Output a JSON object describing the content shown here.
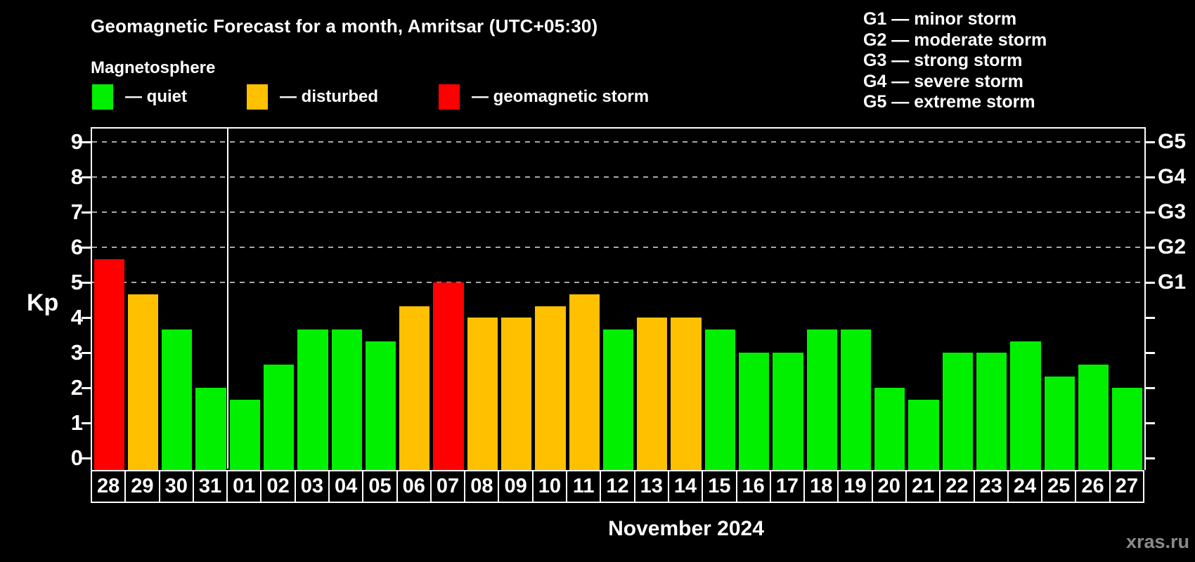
{
  "header": {
    "title": "Geomagnetic Forecast for a month, Amritsar (UTC+05:30)",
    "subtitle": "Magnetosphere"
  },
  "legend": {
    "items": [
      {
        "status": "quiet",
        "label": "— quiet"
      },
      {
        "status": "disturbed",
        "label": "— disturbed"
      },
      {
        "status": "storm",
        "label": "— geomagnetic storm"
      }
    ]
  },
  "storm_scale": [
    "G1 — minor storm",
    "G2 — moderate storm",
    "G3 — strong storm",
    "G4 — severe storm",
    "G5 — extreme storm"
  ],
  "colors": {
    "quiet": "#00f000",
    "disturbed": "#ffc000",
    "storm": "#ff0000",
    "grid": "#a8a8a8",
    "axis": "#ffffff",
    "watermark": "#8a8a8a"
  },
  "watermark": "xras.ru",
  "chart_data": {
    "type": "bar",
    "title": "Geomagnetic Forecast for a month, Amritsar (UTC+05:30)",
    "ylabel": "Kp",
    "xlabel": "November 2024",
    "ylim": [
      0,
      9
    ],
    "y_ticks": [
      0,
      1,
      2,
      3,
      4,
      5,
      6,
      7,
      8,
      9
    ],
    "gridline_values": [
      5,
      6,
      7,
      8,
      9
    ],
    "grid": "dashed, only at storm levels 5-9",
    "legend_position": "top-left and top-right",
    "right_axis_labels": [
      {
        "value": 5,
        "label": "G1"
      },
      {
        "value": 6,
        "label": "G2"
      },
      {
        "value": 7,
        "label": "G3"
      },
      {
        "value": 8,
        "label": "G4"
      },
      {
        "value": 9,
        "label": "G5"
      }
    ],
    "categories": [
      "28",
      "29",
      "30",
      "31",
      "01",
      "02",
      "03",
      "04",
      "05",
      "06",
      "07",
      "08",
      "09",
      "10",
      "11",
      "12",
      "13",
      "14",
      "15",
      "16",
      "17",
      "18",
      "19",
      "20",
      "21",
      "22",
      "23",
      "24",
      "25",
      "26",
      "27"
    ],
    "values": [
      5.67,
      4.67,
      3.67,
      2,
      1.67,
      2.67,
      3.67,
      3.67,
      3.33,
      4.33,
      5,
      4,
      4,
      4.33,
      4.67,
      3.67,
      4,
      4,
      3.67,
      3,
      3,
      3.67,
      3.67,
      2,
      1.67,
      3,
      3,
      3.33,
      2.33,
      2.67,
      2
    ],
    "statuses": [
      "storm",
      "disturbed",
      "quiet",
      "quiet",
      "quiet",
      "quiet",
      "quiet",
      "quiet",
      "quiet",
      "disturbed",
      "storm",
      "disturbed",
      "disturbed",
      "disturbed",
      "disturbed",
      "quiet",
      "disturbed",
      "disturbed",
      "quiet",
      "quiet",
      "quiet",
      "quiet",
      "quiet",
      "quiet",
      "quiet",
      "quiet",
      "quiet",
      "quiet",
      "quiet",
      "quiet",
      "quiet"
    ],
    "month_boundary_after_index": 3
  }
}
